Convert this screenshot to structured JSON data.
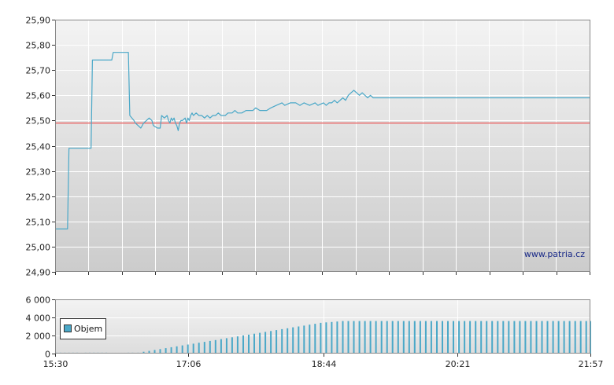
{
  "chart_data": [
    {
      "type": "line",
      "y_ticks": [
        "25,90",
        "25,80",
        "25,70",
        "25,60",
        "25,50",
        "25,40",
        "25,30",
        "25,20",
        "25,10",
        "25,00",
        "24,90"
      ],
      "ylim": [
        24.9,
        25.9
      ],
      "reference_line": 25.49,
      "watermark": "www.patria.cz",
      "colors": {
        "line": "#4aa8c8",
        "reference": "#e86a6a"
      },
      "series": [
        {
          "t": [
            "15:30",
            "15:39",
            "15:40",
            "15:56",
            "15:57",
            "16:11",
            "16:12",
            "16:23",
            "16:24",
            "16:27",
            "16:28",
            "16:32",
            "16:34",
            "16:36",
            "16:38",
            "16:40",
            "16:41",
            "16:44",
            "16:46",
            "16:47",
            "16:49",
            "16:51",
            "16:52",
            "16:53",
            "16:54",
            "16:55",
            "16:56",
            "16:57",
            "16:58",
            "16:59",
            "17:00",
            "17:01",
            "17:02",
            "17:04",
            "17:05",
            "17:06",
            "17:07",
            "17:08",
            "17:09",
            "17:10",
            "17:12",
            "17:14",
            "17:16",
            "17:18",
            "17:20",
            "17:22",
            "17:24",
            "17:26",
            "17:28",
            "17:30",
            "17:33",
            "17:35",
            "17:38",
            "17:40",
            "17:42",
            "17:45",
            "17:48",
            "17:50",
            "17:53",
            "17:55",
            "17:58",
            "18:00",
            "18:03",
            "18:06",
            "18:10",
            "18:14",
            "18:16",
            "18:20",
            "18:24",
            "18:27",
            "18:30",
            "18:34",
            "18:38",
            "18:40",
            "18:44",
            "18:46",
            "18:48",
            "18:50",
            "18:52",
            "18:54",
            "18:56",
            "18:58",
            "19:00",
            "19:02",
            "19:04",
            "19:06",
            "19:08",
            "19:10",
            "19:12",
            "19:14",
            "19:16",
            "19:18",
            "19:20",
            "19:22",
            "19:23",
            "19:25",
            "19:27",
            "19:29",
            "19:31",
            "21:57"
          ],
          "y": [
            25.07,
            25.07,
            25.39,
            25.39,
            25.74,
            25.74,
            25.77,
            25.77,
            25.52,
            25.5,
            25.49,
            25.47,
            25.49,
            25.5,
            25.51,
            25.5,
            25.48,
            25.47,
            25.47,
            25.52,
            25.51,
            25.52,
            25.5,
            25.49,
            25.51,
            25.5,
            25.51,
            25.49,
            25.48,
            25.46,
            25.49,
            25.5,
            25.5,
            25.51,
            25.49,
            25.51,
            25.5,
            25.52,
            25.53,
            25.52,
            25.53,
            25.52,
            25.52,
            25.51,
            25.52,
            25.51,
            25.52,
            25.52,
            25.53,
            25.52,
            25.52,
            25.53,
            25.53,
            25.54,
            25.53,
            25.53,
            25.54,
            25.54,
            25.54,
            25.55,
            25.54,
            25.54,
            25.54,
            25.55,
            25.56,
            25.57,
            25.56,
            25.57,
            25.57,
            25.56,
            25.57,
            25.56,
            25.57,
            25.56,
            25.57,
            25.56,
            25.57,
            25.57,
            25.58,
            25.57,
            25.58,
            25.59,
            25.58,
            25.6,
            25.61,
            25.62,
            25.61,
            25.6,
            25.61,
            25.6,
            25.59,
            25.6,
            25.59,
            25.59,
            25.59,
            25.59,
            25.59,
            25.59,
            25.59,
            25.59
          ]
        }
      ]
    },
    {
      "type": "bar",
      "y_ticks": [
        "6 000",
        "4 000",
        "2 000",
        "0"
      ],
      "ylim": [
        0,
        6000
      ],
      "x_ticks": [
        "15:30",
        "17:06",
        "18:44",
        "20:21",
        "21:57"
      ],
      "legend": "Objem",
      "colors": {
        "bar": "#4aa8c8"
      },
      "series": [
        {
          "name": "Objem",
          "t": [
            "15:31",
            "15:34",
            "15:37",
            "15:40",
            "15:43",
            "15:46",
            "15:52",
            "15:55",
            "15:58",
            "16:01",
            "16:04",
            "16:07",
            "16:23",
            "16:26",
            "16:30",
            "16:34",
            "16:38",
            "16:42",
            "16:46",
            "16:50",
            "16:54",
            "16:58",
            "17:02",
            "17:06",
            "17:10",
            "17:14",
            "17:18",
            "17:22",
            "17:26",
            "17:30",
            "17:34",
            "17:38",
            "17:42",
            "17:46",
            "17:50",
            "17:54",
            "17:58",
            "18:02",
            "18:06",
            "18:10",
            "18:14",
            "18:18",
            "18:22",
            "18:26",
            "18:30",
            "18:34",
            "18:38",
            "18:42",
            "18:46",
            "18:50",
            "18:54",
            "18:58",
            "19:02",
            "19:06",
            "19:10",
            "19:14",
            "19:18",
            "19:22",
            "19:26",
            "19:30",
            "19:34",
            "19:38",
            "19:42",
            "19:46",
            "19:50",
            "19:54",
            "19:58",
            "20:02",
            "20:06",
            "20:10",
            "20:14",
            "20:18",
            "20:22",
            "20:26",
            "20:30",
            "20:34",
            "20:38",
            "20:42",
            "20:46",
            "20:50",
            "20:54",
            "20:58",
            "21:02",
            "21:06",
            "21:10",
            "21:14",
            "21:18",
            "21:22",
            "21:26",
            "21:30",
            "21:34",
            "21:38",
            "21:42",
            "21:46",
            "21:50",
            "21:54",
            "21:57"
          ],
          "values": [
            100,
            100,
            100,
            100,
            100,
            100,
            100,
            100,
            100,
            100,
            100,
            100,
            100,
            100,
            100,
            200,
            300,
            400,
            500,
            600,
            700,
            800,
            900,
            1000,
            1100,
            1200,
            1300,
            1400,
            1500,
            1600,
            1700,
            1800,
            1900,
            2000,
            2100,
            2200,
            2300,
            2400,
            2500,
            2600,
            2700,
            2800,
            2900,
            3000,
            3100,
            3200,
            3300,
            3400,
            3450,
            3500,
            3550,
            3600,
            3600,
            3600,
            3600,
            3600,
            3600,
            3600,
            3600,
            3600,
            3600,
            3600,
            3600,
            3600,
            3600,
            3600,
            3600,
            3600,
            3600,
            3600,
            3600,
            3600,
            3600,
            3600,
            3600,
            3600,
            3600,
            3600,
            3600,
            3600,
            3600,
            3600,
            3600,
            3600,
            3600,
            3600,
            3600,
            3600,
            3600,
            3600,
            3600,
            3600,
            3600,
            3600,
            3600,
            3600,
            3600
          ]
        }
      ]
    }
  ]
}
